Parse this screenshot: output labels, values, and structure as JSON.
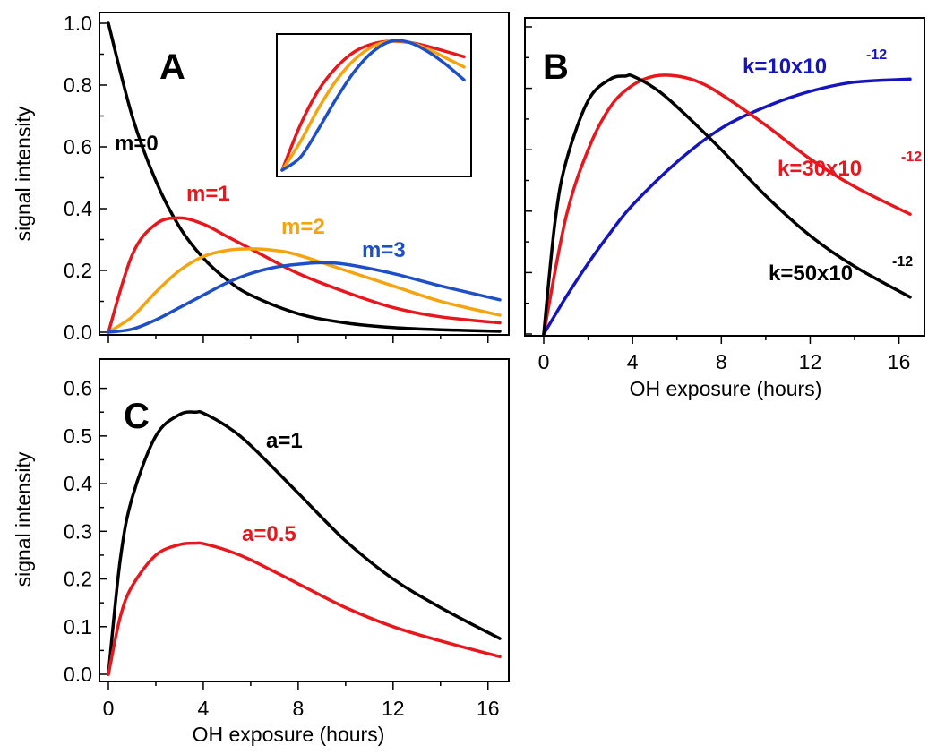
{
  "colors": {
    "black": "#000000",
    "red": "#e8171d",
    "orange": "#f5a30f",
    "blue": "#1f4fc7",
    "dark_blue": "#1515c0"
  },
  "chart_data": [
    {
      "panel": "A",
      "type": "line",
      "ylabel": "signal intensity",
      "xlabel": "",
      "xlim": [
        0,
        16.5
      ],
      "ylim": [
        0,
        1.0
      ],
      "yticks": [
        "0.0",
        "0.2",
        "0.4",
        "0.6",
        "0.8",
        "1.0"
      ],
      "series": [
        {
          "name": "m=0",
          "color": "#000000",
          "x": [
            0,
            1,
            2,
            3,
            4,
            5,
            6,
            8,
            10,
            12,
            14,
            16.5
          ],
          "y": [
            1.0,
            0.7,
            0.49,
            0.34,
            0.24,
            0.17,
            0.12,
            0.06,
            0.03,
            0.015,
            0.008,
            0.003
          ]
        },
        {
          "name": "m=1",
          "color": "#e8171d",
          "x": [
            0,
            1,
            2,
            3,
            4,
            5,
            6,
            8,
            10,
            12,
            14,
            16.5
          ],
          "y": [
            0,
            0.25,
            0.35,
            0.37,
            0.35,
            0.31,
            0.27,
            0.19,
            0.13,
            0.08,
            0.05,
            0.03
          ]
        },
        {
          "name": "m=2",
          "color": "#f5a30f",
          "x": [
            0,
            1,
            2,
            3,
            4,
            5,
            6,
            7,
            8,
            10,
            12,
            14,
            16.5
          ],
          "y": [
            0,
            0.05,
            0.13,
            0.2,
            0.245,
            0.265,
            0.27,
            0.265,
            0.25,
            0.2,
            0.15,
            0.1,
            0.055
          ]
        },
        {
          "name": "m=3",
          "color": "#1f4fc7",
          "x": [
            0,
            1,
            2,
            3,
            4,
            5,
            6,
            7,
            8,
            9,
            10,
            12,
            14,
            16.5
          ],
          "y": [
            0,
            0.01,
            0.04,
            0.08,
            0.12,
            0.16,
            0.19,
            0.21,
            0.22,
            0.225,
            0.22,
            0.19,
            0.15,
            0.105
          ]
        }
      ],
      "inset": {
        "x": [
          0,
          0.1,
          0.2,
          0.3,
          0.4,
          0.5,
          0.6,
          0.7,
          0.8,
          0.9,
          1.0
        ],
        "series": [
          {
            "color": "#e8171d",
            "y": [
              0.0,
              0.35,
              0.62,
              0.8,
              0.92,
              0.98,
              1.0,
              0.99,
              0.96,
              0.92,
              0.88
            ]
          },
          {
            "color": "#f5a30f",
            "y": [
              0.0,
              0.22,
              0.48,
              0.7,
              0.86,
              0.96,
              1.0,
              0.99,
              0.94,
              0.87,
              0.8
            ]
          },
          {
            "color": "#1f4fc7",
            "y": [
              0.0,
              0.1,
              0.32,
              0.56,
              0.77,
              0.92,
              1.0,
              0.99,
              0.92,
              0.82,
              0.7
            ]
          }
        ]
      }
    },
    {
      "panel": "B",
      "type": "line",
      "xlabel": "OH exposure (hours)",
      "ylabel": "",
      "xlim": [
        0,
        16.5
      ],
      "ylim": [
        0,
        1.0
      ],
      "xticks": [
        "0",
        "4",
        "8",
        "12",
        "16"
      ],
      "series": [
        {
          "name": "k=10x10",
          "exponent": "-12",
          "color": "#1515c0",
          "x": [
            0,
            1,
            2,
            3,
            4,
            6,
            8,
            10,
            12,
            14,
            16.5
          ],
          "y": [
            0,
            0.12,
            0.23,
            0.33,
            0.42,
            0.56,
            0.67,
            0.74,
            0.79,
            0.82,
            0.83
          ]
        },
        {
          "name": "k=30x10",
          "exponent": "-12",
          "color": "#e8171d",
          "x": [
            0,
            1,
            2,
            3,
            4,
            5,
            6,
            7,
            8,
            10,
            12,
            14,
            16.5
          ],
          "y": [
            0,
            0.38,
            0.6,
            0.74,
            0.81,
            0.84,
            0.84,
            0.82,
            0.78,
            0.68,
            0.57,
            0.48,
            0.39
          ]
        },
        {
          "name": "k=50x10",
          "exponent": "-12",
          "color": "#000000",
          "x": [
            0,
            0.5,
            1,
            2,
            3,
            3.7,
            4,
            5,
            6,
            8,
            10,
            12,
            14,
            16.5
          ],
          "y": [
            0,
            0.36,
            0.56,
            0.76,
            0.83,
            0.84,
            0.84,
            0.8,
            0.74,
            0.6,
            0.45,
            0.32,
            0.22,
            0.12
          ]
        }
      ]
    },
    {
      "panel": "C",
      "type": "line",
      "xlabel": "OH exposure (hours)",
      "ylabel": "signal intensity",
      "xlim": [
        0,
        16.5
      ],
      "ylim": [
        0,
        0.65
      ],
      "xticks": [
        "0",
        "4",
        "8",
        "12",
        "16"
      ],
      "yticks": [
        "0.0",
        "0.1",
        "0.2",
        "0.3",
        "0.4",
        "0.5",
        "0.6"
      ],
      "series": [
        {
          "name": "a=1",
          "color": "#000000",
          "x": [
            0,
            0.5,
            1,
            2,
            3,
            3.7,
            4,
            5,
            6,
            8,
            10,
            12,
            14,
            16.5
          ],
          "y": [
            0,
            0.24,
            0.37,
            0.5,
            0.545,
            0.55,
            0.548,
            0.52,
            0.48,
            0.38,
            0.28,
            0.2,
            0.14,
            0.075
          ]
        },
        {
          "name": "a=0.5",
          "color": "#e8171d",
          "x": [
            0,
            0.5,
            1,
            2,
            3,
            3.7,
            4,
            5,
            6,
            8,
            10,
            12,
            14,
            16.5
          ],
          "y": [
            0,
            0.12,
            0.185,
            0.25,
            0.272,
            0.275,
            0.274,
            0.26,
            0.24,
            0.19,
            0.14,
            0.1,
            0.07,
            0.037
          ]
        }
      ]
    }
  ]
}
